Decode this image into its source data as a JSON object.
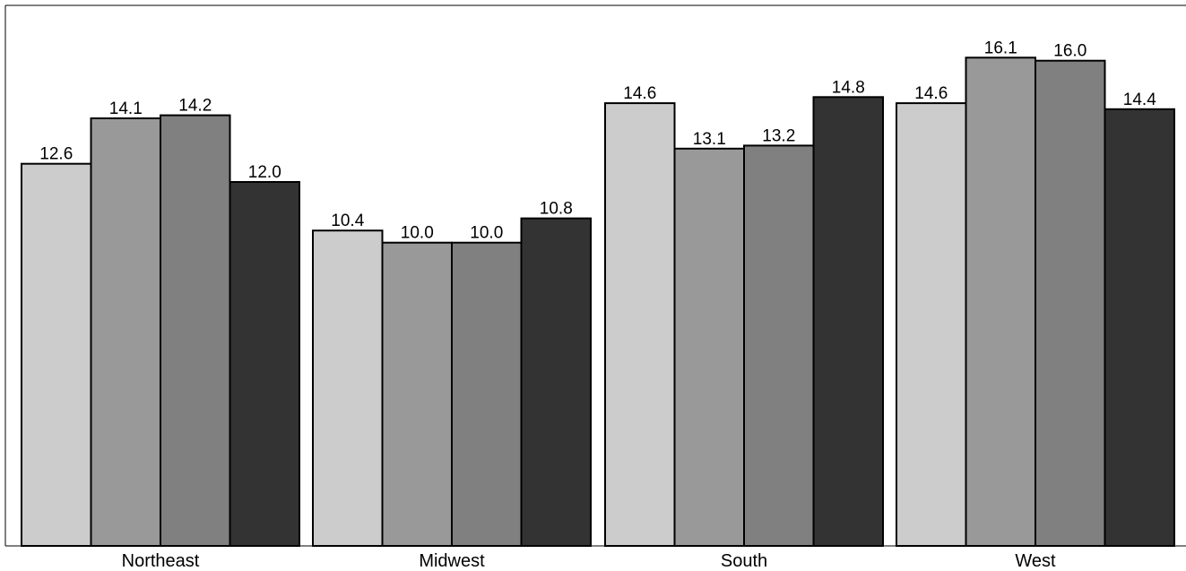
{
  "chart_data": {
    "type": "bar",
    "title": "",
    "xlabel": "",
    "ylabel": "",
    "categories": [
      "Northeast",
      "Midwest",
      "South",
      "West"
    ],
    "series": [
      {
        "values": [
          12.6,
          10.4,
          14.6,
          14.6
        ],
        "color": "#cccccc"
      },
      {
        "values": [
          14.1,
          10.0,
          13.1,
          16.1
        ],
        "color": "#999999"
      },
      {
        "values": [
          14.2,
          10.0,
          13.2,
          16.0
        ],
        "color": "#808080"
      },
      {
        "values": [
          12.0,
          10.8,
          14.8,
          14.4
        ],
        "color": "#333333"
      }
    ],
    "ylim": [
      0,
      18
    ],
    "grid": false,
    "legend": "none",
    "value_format": "0.0"
  }
}
